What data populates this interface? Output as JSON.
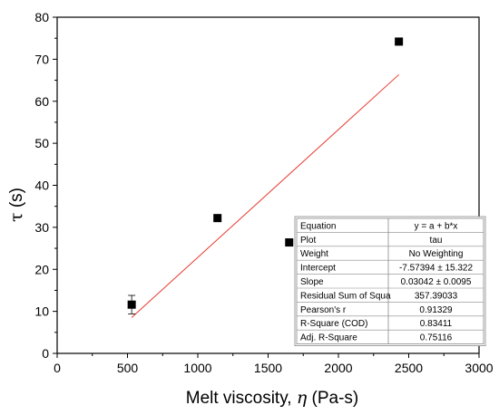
{
  "chart_data": {
    "type": "scatter",
    "xlabel_main": "Melt viscosity, ",
    "xlabel_symbol": "η",
    "xlabel_unit": " (Pa-s)",
    "ylabel_symbol": "τ",
    "ylabel_unit": " (s)",
    "xlim": [
      0,
      3000
    ],
    "ylim": [
      0,
      80
    ],
    "xticks": [
      0,
      500,
      1000,
      1500,
      2000,
      2500,
      3000
    ],
    "yticks": [
      0,
      10,
      20,
      30,
      40,
      50,
      60,
      70,
      80
    ],
    "grid": false,
    "series": [
      {
        "marker": "square",
        "color": "#000000",
        "points": [
          {
            "x": 530,
            "y": 11.6,
            "err": 2.2
          },
          {
            "x": 1140,
            "y": 32.2,
            "err": 0
          },
          {
            "x": 1650,
            "y": 26.4,
            "err": 0
          },
          {
            "x": 2430,
            "y": 74.2,
            "err": 0
          }
        ]
      }
    ],
    "fit_line": {
      "color": "#e8382f",
      "intercept": -7.57394,
      "slope": 0.03042,
      "x_range": [
        530,
        2430
      ]
    },
    "fit_table": {
      "rows": [
        {
          "label": "Equation",
          "value": "y = a + b*x"
        },
        {
          "label": "Plot",
          "value": "tau"
        },
        {
          "label": "Weight",
          "value": "No Weighting"
        },
        {
          "label": "Intercept",
          "value": "-7.57394 ± 15.322"
        },
        {
          "label": "Slope",
          "value": "0.03042 ± 0.0095"
        },
        {
          "label": "Residual Sum of Squa",
          "value": "357.39033"
        },
        {
          "label": "Pearson's r",
          "value": "0.91329"
        },
        {
          "label": "R-Square (COD)",
          "value": "0.83411"
        },
        {
          "label": "Adj. R-Square",
          "value": "0.75116"
        }
      ]
    }
  }
}
